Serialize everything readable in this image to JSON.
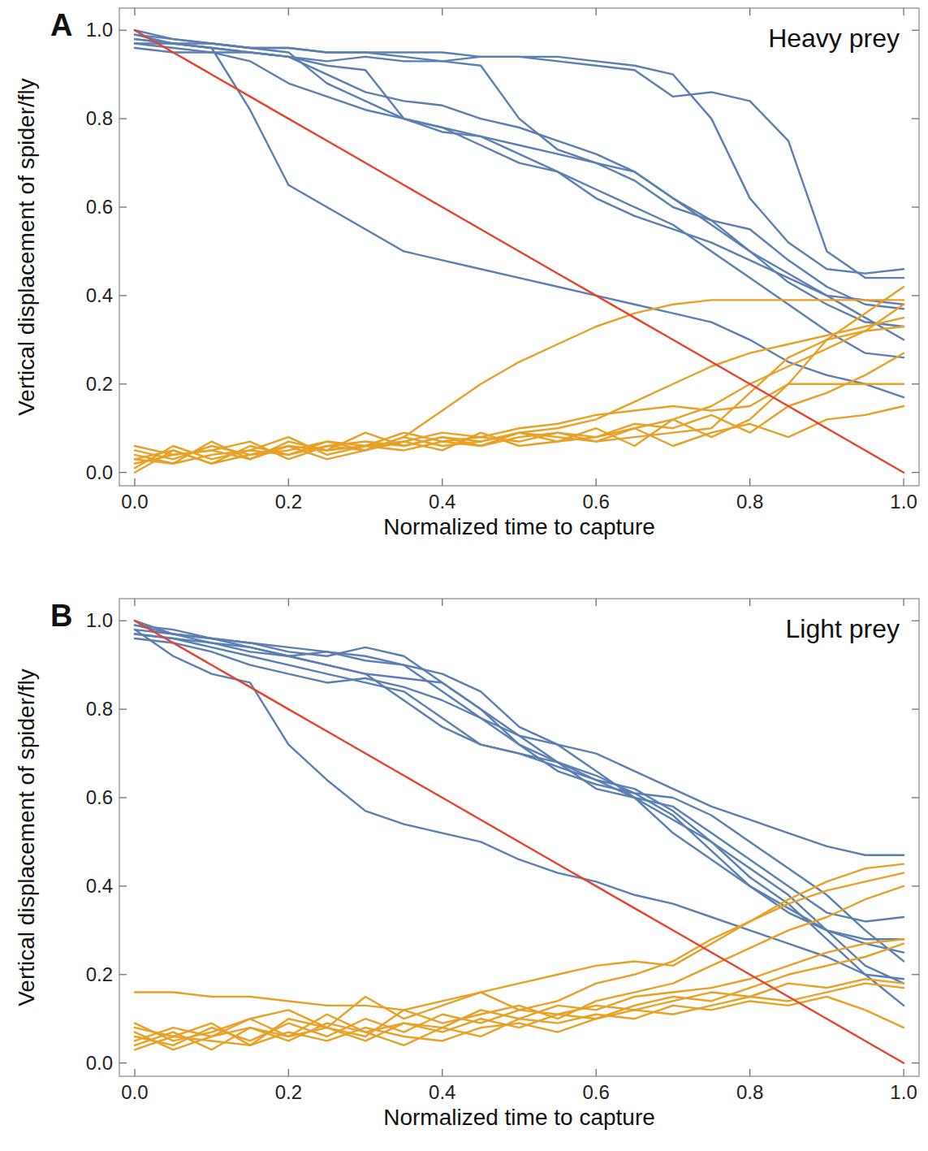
{
  "chart_data": [
    {
      "type": "line",
      "panel_label": "A",
      "title": "Heavy prey",
      "x_label": "Normalized time to capture",
      "y_label": "Vertical displacement of spider/fly",
      "xlim": [
        -0.02,
        1.02
      ],
      "ylim": [
        -0.03,
        1.05
      ],
      "xticks": [
        {
          "value": 0,
          "label": "0.0"
        },
        0.2,
        0.4,
        0.6,
        0.8,
        {
          "value": 1,
          "label": "1.0"
        }
      ],
      "yticks": [
        {
          "value": 0,
          "label": "0.0"
        },
        0.2,
        0.4,
        0.6,
        0.8,
        {
          "value": 1,
          "label": "1.0"
        }
      ],
      "grid": false,
      "x": [
        0,
        0.05,
        0.1,
        0.15,
        0.2,
        0.25,
        0.3,
        0.35,
        0.4,
        0.45,
        0.5,
        0.55,
        0.6,
        0.65,
        0.7,
        0.75,
        0.8,
        0.85,
        0.9,
        0.95,
        1
      ],
      "series": [
        {
          "color": "#5b7fb5",
          "values": [
            0.99,
            0.97,
            0.96,
            0.82,
            0.65,
            0.6,
            0.55,
            0.5,
            0.48,
            0.46,
            0.44,
            0.42,
            0.4,
            0.38,
            0.36,
            0.34,
            0.3,
            0.25,
            0.22,
            0.2,
            0.17
          ]
        },
        {
          "color": "#5b7fb5",
          "values": [
            0.98,
            0.97,
            0.96,
            0.95,
            0.94,
            0.93,
            0.94,
            0.93,
            0.93,
            0.94,
            0.94,
            0.93,
            0.92,
            0.91,
            0.85,
            0.86,
            0.84,
            0.75,
            0.5,
            0.44,
            0.44
          ]
        },
        {
          "color": "#5b7fb5",
          "values": [
            0.97,
            0.96,
            0.95,
            0.95,
            0.94,
            0.92,
            0.91,
            0.8,
            0.77,
            0.76,
            0.74,
            0.72,
            0.7,
            0.66,
            0.6,
            0.57,
            0.55,
            0.48,
            0.42,
            0.38,
            0.37
          ]
        },
        {
          "color": "#5b7fb5",
          "values": [
            1.0,
            0.98,
            0.97,
            0.96,
            0.95,
            0.88,
            0.84,
            0.8,
            0.78,
            0.76,
            0.72,
            0.68,
            0.62,
            0.58,
            0.55,
            0.52,
            0.48,
            0.44,
            0.4,
            0.39,
            0.38
          ]
        },
        {
          "color": "#5b7fb5",
          "values": [
            0.99,
            0.98,
            0.97,
            0.96,
            0.96,
            0.95,
            0.95,
            0.94,
            0.93,
            0.92,
            0.8,
            0.73,
            0.7,
            0.68,
            0.62,
            0.56,
            0.5,
            0.45,
            0.4,
            0.35,
            0.3
          ]
        },
        {
          "color": "#5b7fb5",
          "values": [
            0.98,
            0.97,
            0.97,
            0.96,
            0.96,
            0.95,
            0.95,
            0.95,
            0.95,
            0.94,
            0.94,
            0.94,
            0.93,
            0.92,
            0.9,
            0.8,
            0.62,
            0.52,
            0.46,
            0.45,
            0.46
          ]
        },
        {
          "color": "#5b7fb5",
          "values": [
            0.96,
            0.95,
            0.95,
            0.93,
            0.88,
            0.85,
            0.82,
            0.8,
            0.78,
            0.74,
            0.7,
            0.68,
            0.64,
            0.6,
            0.56,
            0.5,
            0.44,
            0.38,
            0.32,
            0.27,
            0.26
          ]
        },
        {
          "color": "#5b7fb5",
          "values": [
            0.97,
            0.97,
            0.96,
            0.95,
            0.94,
            0.9,
            0.86,
            0.84,
            0.83,
            0.8,
            0.78,
            0.75,
            0.72,
            0.68,
            0.62,
            0.57,
            0.5,
            0.43,
            0.38,
            0.34,
            0.33
          ]
        },
        {
          "color": "#e8a025",
          "values": [
            0.03,
            0.05,
            0.02,
            0.06,
            0.04,
            0.07,
            0.05,
            0.08,
            0.14,
            0.2,
            0.25,
            0.29,
            0.33,
            0.36,
            0.38,
            0.39,
            0.39,
            0.39,
            0.39,
            0.39,
            0.39
          ]
        },
        {
          "color": "#e8a025",
          "values": [
            0.01,
            0.06,
            0.03,
            0.05,
            0.08,
            0.04,
            0.06,
            0.07,
            0.05,
            0.09,
            0.06,
            0.07,
            0.08,
            0.1,
            0.12,
            0.15,
            0.2,
            0.24,
            0.28,
            0.32,
            0.38
          ]
        },
        {
          "color": "#e8a025",
          "values": [
            0.04,
            0.02,
            0.07,
            0.03,
            0.06,
            0.05,
            0.09,
            0.06,
            0.08,
            0.06,
            0.09,
            0.07,
            0.1,
            0.06,
            0.12,
            0.08,
            0.12,
            0.2,
            0.3,
            0.36,
            0.42
          ]
        },
        {
          "color": "#e8a025",
          "values": [
            0.02,
            0.04,
            0.05,
            0.07,
            0.03,
            0.06,
            0.05,
            0.07,
            0.09,
            0.08,
            0.1,
            0.11,
            0.13,
            0.14,
            0.15,
            0.14,
            0.15,
            0.2,
            0.2,
            0.2,
            0.2
          ]
        },
        {
          "color": "#e8a025",
          "values": [
            0.05,
            0.03,
            0.06,
            0.04,
            0.05,
            0.07,
            0.06,
            0.05,
            0.07,
            0.08,
            0.07,
            0.09,
            0.08,
            0.11,
            0.1,
            0.13,
            0.09,
            0.15,
            0.18,
            0.22,
            0.27
          ]
        },
        {
          "color": "#e8a025",
          "values": [
            0.0,
            0.05,
            0.02,
            0.04,
            0.06,
            0.03,
            0.05,
            0.08,
            0.06,
            0.07,
            0.09,
            0.08,
            0.07,
            0.1,
            0.06,
            0.09,
            0.11,
            0.08,
            0.12,
            0.13,
            0.15
          ]
        },
        {
          "color": "#e8a025",
          "values": [
            0.03,
            0.02,
            0.04,
            0.05,
            0.04,
            0.06,
            0.07,
            0.06,
            0.08,
            0.07,
            0.09,
            0.1,
            0.12,
            0.16,
            0.2,
            0.24,
            0.27,
            0.29,
            0.31,
            0.33,
            0.35
          ]
        },
        {
          "color": "#e8a025",
          "values": [
            0.06,
            0.04,
            0.05,
            0.03,
            0.07,
            0.05,
            0.06,
            0.09,
            0.07,
            0.06,
            0.08,
            0.09,
            0.07,
            0.08,
            0.09,
            0.1,
            0.18,
            0.26,
            0.3,
            0.32,
            0.33
          ]
        },
        {
          "color": "#e8412c",
          "values": [
            1.0,
            0.95,
            0.9,
            0.85,
            0.8,
            0.75,
            0.7,
            0.65,
            0.6,
            0.55,
            0.5,
            0.45,
            0.4,
            0.35,
            0.3,
            0.25,
            0.2,
            0.15,
            0.1,
            0.05,
            0.0
          ]
        }
      ]
    },
    {
      "type": "line",
      "panel_label": "B",
      "title": "Light prey",
      "x_label": "Normalized time to capture",
      "y_label": "Vertical displacement of spider/fly",
      "xlim": [
        -0.02,
        1.02
      ],
      "ylim": [
        -0.03,
        1.05
      ],
      "xticks": [
        {
          "value": 0,
          "label": "0.0"
        },
        0.2,
        0.4,
        0.6,
        0.8,
        {
          "value": 1,
          "label": "1.0"
        }
      ],
      "yticks": [
        {
          "value": 0,
          "label": "0.0"
        },
        0.2,
        0.4,
        0.6,
        0.8,
        {
          "value": 1,
          "label": "1.0"
        }
      ],
      "grid": false,
      "x": [
        0,
        0.05,
        0.1,
        0.15,
        0.2,
        0.25,
        0.3,
        0.35,
        0.4,
        0.45,
        0.5,
        0.55,
        0.6,
        0.65,
        0.7,
        0.75,
        0.8,
        0.85,
        0.9,
        0.95,
        1
      ],
      "series": [
        {
          "color": "#5b7fb5",
          "values": [
            0.98,
            0.92,
            0.88,
            0.86,
            0.72,
            0.64,
            0.57,
            0.54,
            0.52,
            0.5,
            0.46,
            0.43,
            0.41,
            0.38,
            0.36,
            0.33,
            0.3,
            0.27,
            0.24,
            0.2,
            0.19
          ]
        },
        {
          "color": "#5b7fb5",
          "values": [
            1.0,
            0.97,
            0.96,
            0.95,
            0.94,
            0.93,
            0.92,
            0.9,
            0.84,
            0.78,
            0.74,
            0.72,
            0.7,
            0.66,
            0.62,
            0.58,
            0.55,
            0.52,
            0.49,
            0.47,
            0.47
          ]
        },
        {
          "color": "#5b7fb5",
          "values": [
            0.99,
            0.98,
            0.96,
            0.94,
            0.92,
            0.9,
            0.88,
            0.82,
            0.76,
            0.72,
            0.7,
            0.68,
            0.65,
            0.61,
            0.56,
            0.48,
            0.4,
            0.34,
            0.3,
            0.27,
            0.25
          ]
        },
        {
          "color": "#5b7fb5",
          "values": [
            0.97,
            0.96,
            0.95,
            0.93,
            0.92,
            0.93,
            0.91,
            0.9,
            0.88,
            0.84,
            0.76,
            0.72,
            0.66,
            0.6,
            0.52,
            0.46,
            0.4,
            0.35,
            0.3,
            0.28,
            0.28
          ]
        },
        {
          "color": "#5b7fb5",
          "values": [
            0.98,
            0.97,
            0.95,
            0.94,
            0.92,
            0.9,
            0.88,
            0.87,
            0.86,
            0.8,
            0.74,
            0.68,
            0.62,
            0.6,
            0.58,
            0.52,
            0.46,
            0.4,
            0.34,
            0.32,
            0.33
          ]
        },
        {
          "color": "#5b7fb5",
          "values": [
            0.96,
            0.95,
            0.93,
            0.9,
            0.88,
            0.86,
            0.87,
            0.85,
            0.82,
            0.78,
            0.72,
            0.68,
            0.64,
            0.6,
            0.55,
            0.5,
            0.44,
            0.38,
            0.3,
            0.22,
            0.18
          ]
        },
        {
          "color": "#5b7fb5",
          "values": [
            0.99,
            0.97,
            0.96,
            0.95,
            0.93,
            0.92,
            0.94,
            0.92,
            0.86,
            0.8,
            0.72,
            0.66,
            0.63,
            0.61,
            0.6,
            0.56,
            0.5,
            0.44,
            0.38,
            0.3,
            0.23
          ]
        },
        {
          "color": "#5b7fb5",
          "values": [
            0.97,
            0.96,
            0.94,
            0.92,
            0.9,
            0.88,
            0.86,
            0.84,
            0.78,
            0.72,
            0.7,
            0.67,
            0.64,
            0.62,
            0.57,
            0.5,
            0.42,
            0.36,
            0.28,
            0.2,
            0.13
          ]
        },
        {
          "color": "#e8a025",
          "values": [
            0.16,
            0.16,
            0.15,
            0.15,
            0.14,
            0.13,
            0.13,
            0.12,
            0.14,
            0.16,
            0.18,
            0.2,
            0.22,
            0.23,
            0.22,
            0.27,
            0.32,
            0.37,
            0.41,
            0.44,
            0.45
          ]
        },
        {
          "color": "#e8a025",
          "values": [
            0.05,
            0.08,
            0.06,
            0.1,
            0.12,
            0.08,
            0.15,
            0.1,
            0.13,
            0.16,
            0.12,
            0.14,
            0.18,
            0.2,
            0.23,
            0.28,
            0.32,
            0.36,
            0.39,
            0.41,
            0.43
          ]
        },
        {
          "color": "#e8a025",
          "values": [
            0.08,
            0.06,
            0.09,
            0.04,
            0.1,
            0.08,
            0.06,
            0.12,
            0.09,
            0.11,
            0.13,
            0.1,
            0.14,
            0.16,
            0.18,
            0.22,
            0.26,
            0.3,
            0.33,
            0.37,
            0.4
          ]
        },
        {
          "color": "#e8a025",
          "values": [
            0.04,
            0.07,
            0.03,
            0.08,
            0.06,
            0.11,
            0.07,
            0.09,
            0.08,
            0.12,
            0.1,
            0.13,
            0.12,
            0.15,
            0.16,
            0.17,
            0.19,
            0.22,
            0.25,
            0.27,
            0.28
          ]
        },
        {
          "color": "#e8a025",
          "values": [
            0.06,
            0.04,
            0.08,
            0.05,
            0.09,
            0.06,
            0.1,
            0.07,
            0.11,
            0.09,
            0.12,
            0.11,
            0.1,
            0.13,
            0.15,
            0.14,
            0.17,
            0.2,
            0.22,
            0.24,
            0.27
          ]
        },
        {
          "color": "#e8a025",
          "values": [
            0.09,
            0.05,
            0.07,
            0.1,
            0.06,
            0.08,
            0.05,
            0.09,
            0.07,
            0.1,
            0.08,
            0.11,
            0.13,
            0.12,
            0.14,
            0.16,
            0.15,
            0.18,
            0.17,
            0.19,
            0.18
          ]
        },
        {
          "color": "#e8a025",
          "values": [
            0.03,
            0.06,
            0.05,
            0.04,
            0.07,
            0.05,
            0.08,
            0.06,
            0.05,
            0.08,
            0.09,
            0.07,
            0.1,
            0.12,
            0.11,
            0.13,
            0.15,
            0.14,
            0.16,
            0.18,
            0.17
          ]
        },
        {
          "color": "#e8a025",
          "values": [
            0.07,
            0.03,
            0.06,
            0.08,
            0.05,
            0.09,
            0.07,
            0.04,
            0.08,
            0.06,
            0.1,
            0.09,
            0.11,
            0.1,
            0.13,
            0.12,
            0.14,
            0.13,
            0.15,
            0.12,
            0.08
          ]
        },
        {
          "color": "#e8412c",
          "values": [
            1.0,
            0.95,
            0.9,
            0.85,
            0.8,
            0.75,
            0.7,
            0.65,
            0.6,
            0.55,
            0.5,
            0.45,
            0.4,
            0.35,
            0.3,
            0.25,
            0.2,
            0.15,
            0.1,
            0.05,
            0.0
          ]
        }
      ]
    }
  ]
}
